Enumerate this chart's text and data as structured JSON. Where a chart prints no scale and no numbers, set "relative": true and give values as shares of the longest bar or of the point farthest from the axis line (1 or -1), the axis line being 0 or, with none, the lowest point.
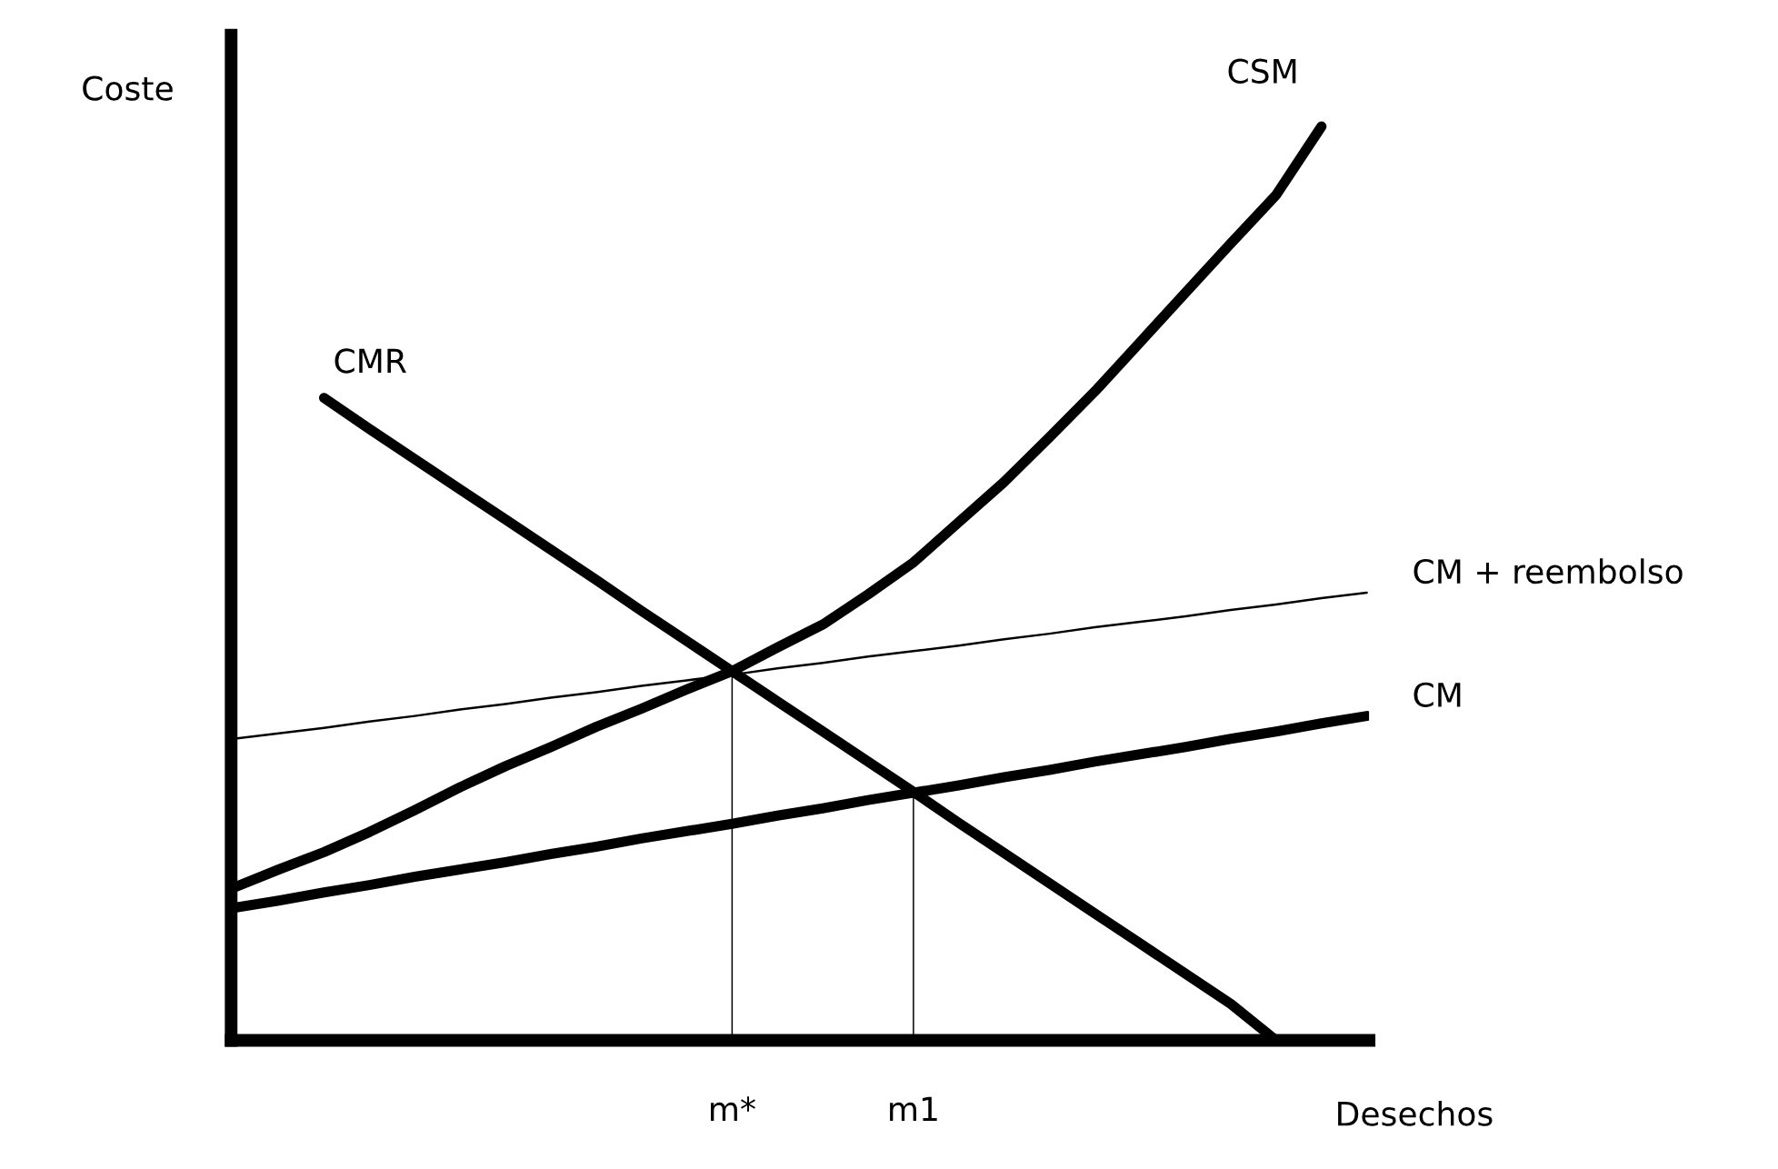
{
  "chart_data": {
    "type": "line",
    "relative": true,
    "xlabel": "Desechos",
    "ylabel": "Coste",
    "categories": [
      null,
      null,
      null,
      null,
      null,
      null,
      null,
      null,
      null,
      null,
      null,
      "m*",
      null,
      null,
      null,
      "m1",
      null,
      null,
      null,
      null,
      null,
      null,
      null,
      null,
      null,
      null
    ],
    "grid": false,
    "marker": "none",
    "line_style": "solid",
    "series": [
      {
        "name": "CSM",
        "color": "#000000",
        "values": [
          0.167,
          0.187,
          0.206,
          0.228,
          0.252,
          0.277,
          0.3,
          0.321,
          0.343,
          0.363,
          0.384,
          0.404,
          0.43,
          0.455,
          0.488,
          0.523,
          0.567,
          0.611,
          0.66,
          0.71,
          0.764,
          0.818,
          0.872,
          0.925,
          1,
          null
        ]
      },
      {
        "name": "CMR",
        "color": "#000000",
        "values": [
          null,
          null,
          0.703,
          0.669,
          0.636,
          0.603,
          0.57,
          0.537,
          0.504,
          0.47,
          0.437,
          0.404,
          0.371,
          0.338,
          0.305,
          0.272,
          0.238,
          0.205,
          0.172,
          0.139,
          0.106,
          0.073,
          0.04,
          0,
          null,
          null
        ]
      },
      {
        "name": "CM + reembolso",
        "color": "#000000",
        "values": [
          0.33,
          0.336,
          0.342,
          0.349,
          0.355,
          0.362,
          0.368,
          0.375,
          0.381,
          0.388,
          0.394,
          0.4,
          0.407,
          0.413,
          0.42,
          0.426,
          0.432,
          0.439,
          0.445,
          0.452,
          0.458,
          0.464,
          0.471,
          0.477,
          0.484,
          0.49
        ]
      },
      {
        "name": "CM",
        "color": "#000000",
        "values": [
          0.145,
          0.153,
          0.162,
          0.17,
          0.179,
          0.187,
          0.195,
          0.204,
          0.212,
          0.221,
          0.229,
          0.237,
          0.246,
          0.254,
          0.263,
          0.271,
          0.279,
          0.288,
          0.296,
          0.305,
          0.313,
          0.321,
          0.33,
          0.338,
          0.347,
          0.355
        ]
      },
      {
        "type": "bar",
        "color": "#000000",
        "values": [
          null,
          null,
          null,
          null,
          null,
          null,
          null,
          null,
          null,
          null,
          null,
          0.404,
          null,
          null,
          null,
          0.271,
          null,
          null,
          null,
          null,
          null,
          null,
          null,
          null,
          null,
          null
        ]
      }
    ]
  }
}
